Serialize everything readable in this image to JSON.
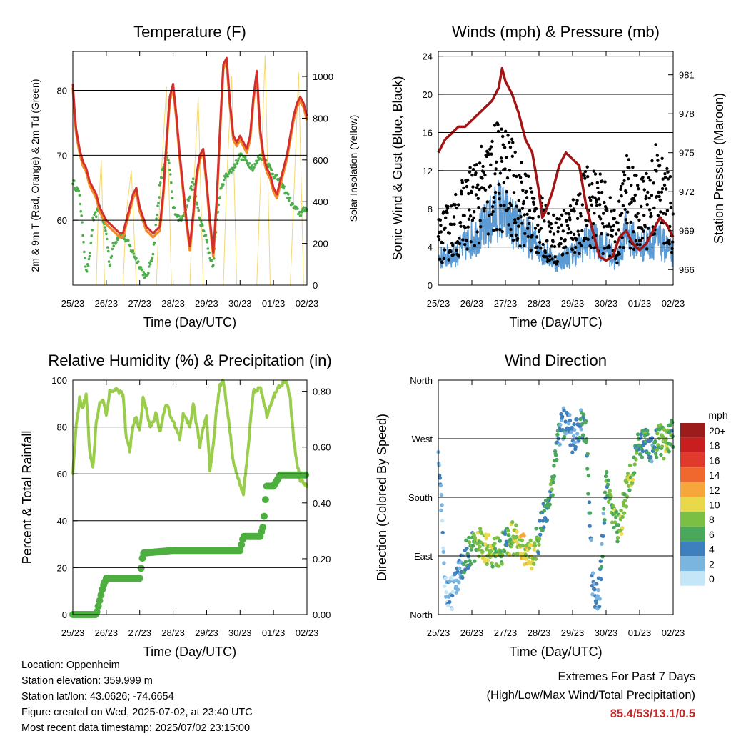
{
  "chart_data": [
    {
      "type": "line",
      "title": "Temperature (F)",
      "xlabel": "Time (Day/UTC)",
      "ylabel": "2m & 9m T (Red, Orange) & 2m Td (Green)",
      "y2label": "Solar Insolation (Yellow)",
      "x_ticks": [
        "25/23",
        "26/23",
        "27/23",
        "28/23",
        "29/23",
        "30/23",
        "01/23",
        "02/23"
      ],
      "y_ticks": [
        "60",
        "70",
        "80"
      ],
      "y2_ticks": [
        "0",
        "200",
        "400",
        "600",
        "800",
        "1000"
      ],
      "ylim": [
        50,
        86
      ],
      "y2lim": [
        0,
        1120
      ],
      "grid": "horizontal at 60, 70, 80",
      "colors": {
        "t2m": "#d32f2f",
        "t9m": "#f28c28",
        "td": "#4cae4c",
        "solar": "#f5d76e"
      },
      "series": [
        {
          "name": "2m T",
          "x": [
            0,
            0.05,
            0.1,
            0.2,
            0.3,
            0.4,
            0.5,
            0.6,
            0.7,
            0.8,
            0.9,
            1,
            1.2,
            1.4,
            1.5,
            1.6,
            1.8,
            1.9,
            2,
            2.2,
            2.4,
            2.6,
            2.7,
            2.8,
            2.9,
            3,
            3.1,
            3.2,
            3.3,
            3.4,
            3.5,
            3.6,
            3.7,
            3.8,
            3.9,
            4,
            4.1,
            4.2,
            4.3,
            4.4,
            4.5,
            4.6,
            4.7,
            4.8,
            4.9,
            5,
            5.1,
            5.2,
            5.3,
            5.4,
            5.5,
            5.6,
            5.7,
            5.8,
            5.9,
            6,
            6.1,
            6.2,
            6.3,
            6.4,
            6.5,
            6.6,
            6.7,
            6.8,
            6.9,
            7
          ],
          "y": [
            81,
            77,
            74,
            71,
            69,
            68,
            66,
            65,
            64,
            62,
            61,
            60,
            59,
            58,
            58,
            60,
            64,
            65,
            62,
            59,
            58,
            59,
            64,
            72,
            79,
            81,
            76,
            70,
            65,
            60,
            56,
            61,
            67,
            70,
            71,
            66,
            60,
            55,
            63,
            74,
            84,
            85,
            78,
            73,
            72,
            73,
            72,
            71,
            73,
            79,
            83,
            74,
            70,
            68,
            67,
            65,
            64,
            66,
            68,
            70,
            73,
            76,
            78,
            79,
            78,
            76
          ]
        },
        {
          "name": "2m Td",
          "x": [
            0,
            0.1,
            0.2,
            0.3,
            0.4,
            0.5,
            0.6,
            0.8,
            1,
            1.1,
            1.2,
            1.4,
            1.6,
            1.8,
            2,
            2.2,
            2.4,
            2.5,
            2.6,
            2.7,
            2.8,
            2.9,
            3,
            3.2,
            3.4,
            3.6,
            3.8,
            4,
            4.1,
            4.2,
            4.3,
            4.4,
            4.5,
            4.6,
            4.8,
            5,
            5.2,
            5.4,
            5.6,
            5.8,
            6,
            6.2,
            6.4,
            6.6,
            6.8,
            7
          ],
          "y": [
            66,
            65,
            64,
            58,
            52,
            54,
            60,
            62,
            58,
            53,
            56,
            58,
            57,
            55,
            53,
            51,
            55,
            60,
            65,
            68,
            70,
            68,
            62,
            60,
            62,
            66,
            60,
            57,
            54,
            53,
            60,
            64,
            66,
            67,
            68,
            70,
            69,
            68,
            70,
            69,
            67,
            66,
            64,
            62,
            61,
            62
          ]
        },
        {
          "name": "Solar",
          "x": [
            0,
            0.7,
            0.75,
            0.85,
            0.95,
            1.5,
            1.6,
            1.75,
            1.9,
            2.5,
            2.6,
            2.8,
            2.95,
            3.5,
            3.6,
            3.75,
            3.9,
            4.5,
            4.6,
            4.75,
            4.9,
            5.5,
            5.6,
            5.75,
            5.9,
            6.5,
            6.6,
            6.75,
            6.9,
            7
          ],
          "y": [
            0,
            0,
            300,
            600,
            0,
            0,
            350,
            550,
            0,
            0,
            400,
            950,
            0,
            0,
            420,
            900,
            0,
            0,
            500,
            1000,
            0,
            0,
            450,
            1100,
            0,
            0,
            400,
            1020,
            0,
            0
          ]
        }
      ]
    },
    {
      "type": "scatter",
      "title": "Winds (mph) & Pressure (mb)",
      "xlabel": "Time (Day/UTC)",
      "ylabel": "Sonic Wind & Gust (Blue, Black)",
      "y2label": "Station Pressure (Maroon)",
      "x_ticks": [
        "25/23",
        "26/23",
        "27/23",
        "28/23",
        "29/23",
        "30/23",
        "01/23",
        "02/23"
      ],
      "y_ticks": [
        "0",
        "4",
        "8",
        "12",
        "16",
        "20",
        "24"
      ],
      "y2_ticks": [
        "966",
        "969",
        "972",
        "975",
        "978",
        "981"
      ],
      "ylim": [
        0,
        24.5
      ],
      "y2lim": [
        964.8,
        982.8
      ],
      "grid": "horizontal at 4, 8, 12, 16, 20, 24",
      "colors": {
        "wind": "#5b9bd5",
        "gust": "#000000",
        "pressure": "#a31515"
      },
      "series": [
        {
          "name": "Pressure",
          "x": [
            0,
            0.2,
            0.4,
            0.6,
            0.8,
            1,
            1.2,
            1.4,
            1.6,
            1.8,
            1.9,
            2,
            2.2,
            2.4,
            2.6,
            2.8,
            3,
            3.1,
            3.2,
            3.4,
            3.6,
            3.8,
            4,
            4.2,
            4.4,
            4.6,
            4.8,
            5,
            5.2,
            5.4,
            5.6,
            5.8,
            6,
            6.2,
            6.4,
            6.6,
            6.8,
            7
          ],
          "y": [
            975,
            976,
            976.5,
            977,
            977,
            977.5,
            978,
            978.5,
            979,
            980,
            981.5,
            980.5,
            979.5,
            978,
            976,
            975,
            972,
            970,
            970.5,
            972,
            974,
            975,
            974.5,
            974,
            971,
            969,
            967,
            966.7,
            967,
            968.5,
            969,
            968,
            967.5,
            968,
            969,
            970,
            969.5,
            968.5
          ]
        },
        {
          "name": "Wind",
          "envelope": [
            [
              0,
              3.5
            ],
            [
              0.5,
              4
            ],
            [
              1,
              6
            ],
            [
              1.5,
              8
            ],
            [
              1.8,
              10
            ],
            [
              2,
              9
            ],
            [
              2.5,
              7
            ],
            [
              3,
              5
            ],
            [
              3.5,
              3
            ],
            [
              4,
              4
            ],
            [
              4.5,
              6
            ],
            [
              5,
              5
            ],
            [
              5.3,
              3
            ],
            [
              5.6,
              7
            ],
            [
              6,
              5
            ],
            [
              6.5,
              6
            ],
            [
              7,
              4
            ]
          ]
        },
        {
          "name": "Gust",
          "envelope": [
            [
              0,
              6
            ],
            [
              0.5,
              8
            ],
            [
              1,
              11
            ],
            [
              1.5,
              13
            ],
            [
              1.8,
              15
            ],
            [
              2,
              14
            ],
            [
              2.5,
              11
            ],
            [
              3,
              8
            ],
            [
              3.5,
              6
            ],
            [
              4,
              8
            ],
            [
              4.5,
              11
            ],
            [
              5,
              9
            ],
            [
              5.3,
              6
            ],
            [
              5.6,
              12
            ],
            [
              6,
              9
            ],
            [
              6.5,
              13
            ],
            [
              7,
              9
            ]
          ]
        }
      ]
    },
    {
      "type": "line",
      "title": "Relative Humidity (%) & Precipitation (in)",
      "xlabel": "Time (Day/UTC)",
      "ylabel": "Percent & Total Rainfall",
      "x_ticks": [
        "25/23",
        "26/23",
        "27/23",
        "28/23",
        "29/23",
        "30/23",
        "01/23",
        "02/23"
      ],
      "y_ticks": [
        "0",
        "20",
        "40",
        "60",
        "80",
        "100"
      ],
      "y2_ticks": [
        "0.00",
        "0.20",
        "0.40",
        "0.60",
        "0.80"
      ],
      "ylim": [
        0,
        100
      ],
      "y2lim": [
        0,
        0.84
      ],
      "grid": "horizontal at 20, 40, 60, 80",
      "colors": {
        "rh": "#9acd4c",
        "precip": "#4caf3f"
      },
      "series": [
        {
          "name": "RH",
          "x": [
            0,
            0.1,
            0.2,
            0.3,
            0.4,
            0.5,
            0.6,
            0.7,
            0.8,
            0.9,
            1,
            1.1,
            1.3,
            1.5,
            1.6,
            1.7,
            1.8,
            1.9,
            2,
            2.1,
            2.2,
            2.3,
            2.4,
            2.5,
            2.6,
            2.8,
            3,
            3.2,
            3.3,
            3.5,
            3.6,
            3.8,
            3.9,
            4,
            4.1,
            4.2,
            4.3,
            4.4,
            4.5,
            4.6,
            4.8,
            5,
            5.1,
            5.2,
            5.3,
            5.4,
            5.6,
            5.8,
            6,
            6.2,
            6.4,
            6.5,
            6.6,
            6.7,
            6.8,
            7
          ],
          "y": [
            60,
            80,
            92,
            88,
            95,
            70,
            62,
            82,
            90,
            92,
            85,
            95,
            96,
            94,
            75,
            70,
            80,
            85,
            78,
            92,
            88,
            80,
            82,
            86,
            78,
            90,
            82,
            75,
            85,
            80,
            90,
            72,
            80,
            85,
            62,
            72,
            88,
            98,
            100,
            90,
            65,
            55,
            52,
            65,
            80,
            95,
            97,
            85,
            93,
            98,
            99,
            92,
            75,
            65,
            57,
            55
          ]
        },
        {
          "name": "Precipitation",
          "x": [
            0,
            0.7,
            0.8,
            0.9,
            1.0,
            2.0,
            2.1,
            3.0,
            4.0,
            5.0,
            5.1,
            5.6,
            5.7,
            5.75,
            5.8,
            5.85,
            6.0,
            6.1,
            6.2,
            6.3,
            7
          ],
          "y": [
            0,
            0,
            0.05,
            0.1,
            0.13,
            0.13,
            0.22,
            0.23,
            0.23,
            0.23,
            0.28,
            0.28,
            0.32,
            0.4,
            0.46,
            0.46,
            0.46,
            0.48,
            0.5,
            0.5,
            0.5
          ]
        }
      ]
    },
    {
      "type": "scatter",
      "title": "Wind Direction",
      "xlabel": "Time (Day/UTC)",
      "ylabel": "Direction (Colored By Speed)",
      "x_ticks": [
        "25/23",
        "26/23",
        "27/23",
        "28/23",
        "29/23",
        "30/23",
        "01/23",
        "02/23"
      ],
      "y_ticks": [
        "North",
        "East",
        "South",
        "West",
        "North"
      ],
      "ylim": [
        0,
        360
      ],
      "grid": "horizontal at 90, 180, 270",
      "legend_title": "mph",
      "legend_labels": [
        "20+",
        "18",
        "16",
        "14",
        "12",
        "10",
        "8",
        "6",
        "4",
        "2",
        "0"
      ],
      "legend_colors": [
        "#9c1b1b",
        "#c81e1e",
        "#e03a2c",
        "#f0682e",
        "#f7a63c",
        "#e8d84a",
        "#7bbf44",
        "#4aa85c",
        "#3e7fbd",
        "#7ab5e0",
        "#c5e6f7"
      ],
      "legend_placement": "right",
      "series": [
        {
          "name": "Direction",
          "x": [
            0,
            0.2,
            0.4,
            0.6,
            0.8,
            1,
            1.2,
            1.5,
            1.8,
            2,
            2.2,
            2.5,
            2.8,
            3,
            3.2,
            3.4,
            3.6,
            3.8,
            4,
            4.2,
            4.4,
            4.6,
            4.8,
            5,
            5.2,
            5.4,
            5.6,
            5.8,
            6,
            6.2,
            6.4,
            6.6,
            6.8,
            7
          ],
          "y": [
            270,
            40,
            30,
            60,
            90,
            100,
            110,
            100,
            95,
            110,
            120,
            100,
            90,
            120,
            160,
            200,
            280,
            300,
            270,
            290,
            290,
            40,
            30,
            200,
            150,
            130,
            190,
            230,
            260,
            260,
            250,
            270,
            260,
            280
          ],
          "speed": [
            3,
            2,
            2,
            3,
            5,
            6,
            8,
            9,
            7,
            6,
            8,
            10,
            9,
            6,
            5,
            6,
            4,
            4,
            3,
            4,
            5,
            3,
            3,
            6,
            7,
            8,
            9,
            7,
            6,
            5,
            4,
            7,
            8,
            5
          ]
        }
      ]
    }
  ],
  "footer": {
    "location": "Location: Oppenheim",
    "elevation": "Station elevation: 359.999 m",
    "latlon": "Station lat/lon: 43.0626; -74.6654",
    "created": "Figure created on Wed, 2025-07-02, at 23:40 UTC",
    "recent": "Most recent data timestamp: 2025/07/02 23:15:00"
  },
  "extremes": {
    "title": "Extremes For Past 7 Days",
    "subtitle": "(High/Low/Max Wind/Total Precipitation)",
    "values": "85.4/53/13.1/0.5"
  }
}
